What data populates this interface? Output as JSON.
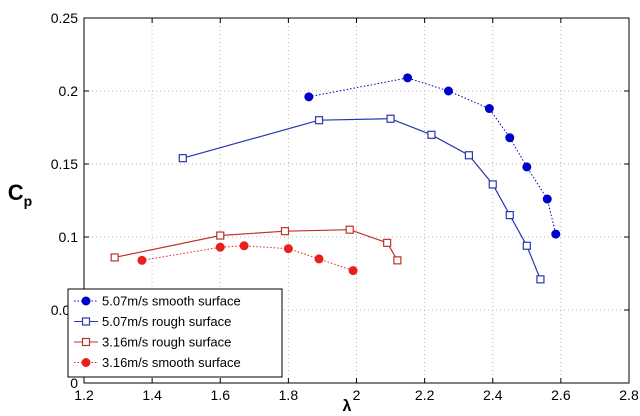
{
  "chart_data": {
    "type": "line",
    "title": "",
    "xlabel": "λ",
    "ylabel_main": "C",
    "ylabel_sub": "p",
    "xlim": [
      1.2,
      2.8
    ],
    "ylim": [
      0,
      0.25
    ],
    "xticks": [
      1.2,
      1.4,
      1.6,
      1.8,
      2,
      2.2,
      2.4,
      2.6,
      2.8
    ],
    "xtick_labels": [
      "1.2",
      "1.4",
      "1.6",
      "1.8",
      "2",
      "2.2",
      "2.4",
      "2.6",
      "2.8"
    ],
    "yticks": [
      0,
      0.05,
      0.1,
      0.15,
      0.2,
      0.25
    ],
    "ytick_labels": [
      "0",
      "0.05",
      "0.1",
      "0.15",
      "0.2",
      "0.25"
    ],
    "grid": true,
    "legend_position": "bottom-left",
    "series": [
      {
        "name": "5.07m/s smooth surface",
        "color": "#0000cc",
        "marker": "filled-circle",
        "line": "dotted",
        "x": [
          1.86,
          2.15,
          2.27,
          2.39,
          2.45,
          2.5,
          2.56,
          2.585
        ],
        "y": [
          0.196,
          0.209,
          0.2,
          0.188,
          0.168,
          0.148,
          0.126,
          0.102
        ]
      },
      {
        "name": "5.07m/s rough surface",
        "color": "#2b36b0",
        "marker": "open-square",
        "line": "solid",
        "x": [
          1.49,
          1.89,
          2.1,
          2.22,
          2.33,
          2.4,
          2.45,
          2.5,
          2.54
        ],
        "y": [
          0.154,
          0.18,
          0.181,
          0.17,
          0.156,
          0.136,
          0.115,
          0.094,
          0.071
        ]
      },
      {
        "name": "3.16m/s rough surface",
        "color": "#c0312c",
        "marker": "open-square",
        "line": "solid",
        "x": [
          1.29,
          1.6,
          1.79,
          1.98,
          2.09,
          2.12
        ],
        "y": [
          0.086,
          0.101,
          0.104,
          0.105,
          0.096,
          0.084
        ]
      },
      {
        "name": "3.16m/s smooth surface",
        "color": "#e8201c",
        "marker": "filled-circle",
        "line": "dotted",
        "x": [
          1.37,
          1.6,
          1.67,
          1.8,
          1.89,
          1.99
        ],
        "y": [
          0.084,
          0.093,
          0.094,
          0.092,
          0.085,
          0.077
        ]
      }
    ]
  }
}
